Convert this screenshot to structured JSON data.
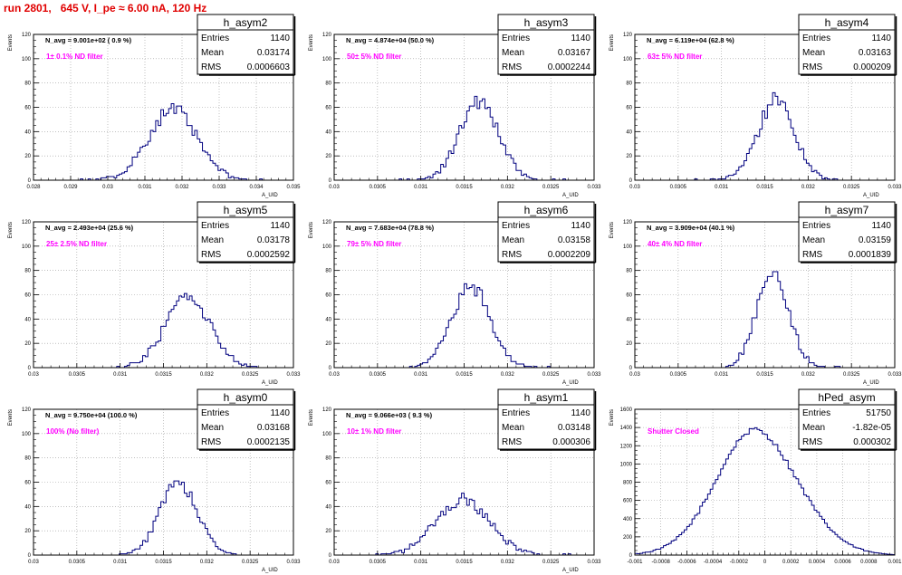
{
  "title": "run 2801,   645 V, I_pe ≈ 6.00 nA, 120 Hz",
  "stats_labels": {
    "entries": "Entries",
    "mean": "Mean",
    "rms": "RMS"
  },
  "colors": {
    "hist": "#00007f",
    "annotation": "#ff00ff",
    "title": "#e00000",
    "grid": "#9a9a9a"
  },
  "chart_data": [
    {
      "type": "bar",
      "name": "h_asym2",
      "ylabel": "Events",
      "xlabel": "A_UID",
      "header": "N_avg = 9.001e+02 ( 0.9 %)",
      "annotation": "1± 0.1% ND filter",
      "entries": "1140",
      "mean": "0.03174",
      "rms": "0.0006603",
      "xlim": [
        0.028,
        0.035
      ],
      "xticks": [
        0.028,
        0.029,
        0.03,
        0.031,
        0.032,
        0.033,
        0.034,
        0.035
      ],
      "xtick_labels": [
        "0.028",
        "0.029",
        "0.03",
        "0.031",
        "0.032",
        "0.033",
        "0.034",
        "0.035"
      ],
      "ylim": [
        0,
        120
      ],
      "yticks": [
        0,
        20,
        40,
        60,
        80,
        100,
        120
      ],
      "grid": true,
      "dist": {
        "mu": 0.03174,
        "sigma": 0.00066,
        "peak": 58,
        "seed": 11
      },
      "bins": 100
    },
    {
      "type": "bar",
      "name": "h_asym3",
      "ylabel": "Events",
      "xlabel": "A_UID",
      "header": "N_avg = 4.874e+04 (50.0 %)",
      "annotation": "50± 5% ND filter",
      "entries": "1140",
      "mean": "0.03167",
      "rms": "0.0002244",
      "xlim": [
        0.03,
        0.033
      ],
      "xticks": [
        0.03,
        0.0305,
        0.031,
        0.0315,
        0.032,
        0.0325,
        0.033
      ],
      "xtick_labels": [
        "0.03",
        "0.0305",
        "0.031",
        "0.0315",
        "0.032",
        "0.0325",
        "0.033"
      ],
      "ylim": [
        0,
        120
      ],
      "yticks": [
        0,
        20,
        40,
        60,
        80,
        100,
        120
      ],
      "grid": true,
      "dist": {
        "mu": 0.03167,
        "sigma": 0.000224,
        "peak": 65,
        "seed": 23
      },
      "bins": 100
    },
    {
      "type": "bar",
      "name": "h_asym4",
      "ylabel": "Events",
      "xlabel": "A_UID",
      "header": "N_avg = 6.119e+04 (62.8 %)",
      "annotation": "63± 5% ND filter",
      "entries": "1140",
      "mean": "0.03163",
      "rms": "0.000209",
      "xlim": [
        0.03,
        0.033
      ],
      "xticks": [
        0.03,
        0.0305,
        0.031,
        0.0315,
        0.032,
        0.0325,
        0.033
      ],
      "xtick_labels": [
        "0.03",
        "0.0305",
        "0.031",
        "0.0315",
        "0.032",
        "0.0325",
        "0.033"
      ],
      "ylim": [
        0,
        120
      ],
      "yticks": [
        0,
        20,
        40,
        60,
        80,
        100,
        120
      ],
      "grid": true,
      "dist": {
        "mu": 0.03163,
        "sigma": 0.000209,
        "peak": 66,
        "seed": 37
      },
      "bins": 100
    },
    {
      "type": "bar",
      "name": "h_asym5",
      "ylabel": "Events",
      "xlabel": "A_UID",
      "header": "N_avg = 2.493e+04 (25.6 %)",
      "annotation": "25± 2.5% ND filter",
      "entries": "1140",
      "mean": "0.03178",
      "rms": "0.0002592",
      "xlim": [
        0.03,
        0.033
      ],
      "xticks": [
        0.03,
        0.0305,
        0.031,
        0.0315,
        0.032,
        0.0325,
        0.033
      ],
      "xtick_labels": [
        "0.03",
        "0.0305",
        "0.031",
        "0.0315",
        "0.032",
        "0.0325",
        "0.033"
      ],
      "ylim": [
        0,
        120
      ],
      "yticks": [
        0,
        20,
        40,
        60,
        80,
        100,
        120
      ],
      "grid": true,
      "dist": {
        "mu": 0.03178,
        "sigma": 0.000259,
        "peak": 58,
        "seed": 41
      },
      "bins": 100
    },
    {
      "type": "bar",
      "name": "h_asym6",
      "ylabel": "Events",
      "xlabel": "A_UID",
      "header": "N_avg = 7.683e+04 (78.8 %)",
      "annotation": "79± 5% ND filter",
      "entries": "1140",
      "mean": "0.03158",
      "rms": "0.0002209",
      "xlim": [
        0.03,
        0.033
      ],
      "xticks": [
        0.03,
        0.0305,
        0.031,
        0.0315,
        0.032,
        0.0325,
        0.033
      ],
      "xtick_labels": [
        "0.03",
        "0.0305",
        "0.031",
        "0.0315",
        "0.032",
        "0.0325",
        "0.033"
      ],
      "ylim": [
        0,
        120
      ],
      "yticks": [
        0,
        20,
        40,
        60,
        80,
        100,
        120
      ],
      "grid": true,
      "dist": {
        "mu": 0.03158,
        "sigma": 0.000221,
        "peak": 66,
        "seed": 53
      },
      "bins": 100
    },
    {
      "type": "bar",
      "name": "h_asym7",
      "ylabel": "Events",
      "xlabel": "A_UID",
      "header": "N_avg = 3.909e+04 (40.1 %)",
      "annotation": "40± 4% ND filter",
      "entries": "1140",
      "mean": "0.03159",
      "rms": "0.0001839",
      "xlim": [
        0.03,
        0.033
      ],
      "xticks": [
        0.03,
        0.0305,
        0.031,
        0.0315,
        0.032,
        0.0325,
        0.033
      ],
      "xtick_labels": [
        "0.03",
        "0.0305",
        "0.031",
        "0.0315",
        "0.032",
        "0.0325",
        "0.033"
      ],
      "ylim": [
        0,
        120
      ],
      "yticks": [
        0,
        20,
        40,
        60,
        80,
        100,
        120
      ],
      "grid": true,
      "dist": {
        "mu": 0.03159,
        "sigma": 0.000184,
        "peak": 78,
        "seed": 67
      },
      "bins": 100
    },
    {
      "type": "bar",
      "name": "h_asym0",
      "ylabel": "Events",
      "xlabel": "A_UID",
      "header": "N_avg = 9.750e+04 (100.0 %)",
      "annotation": "100% (No filter)",
      "entries": "1140",
      "mean": "0.03168",
      "rms": "0.0002135",
      "xlim": [
        0.03,
        0.033
      ],
      "xticks": [
        0.03,
        0.0305,
        0.031,
        0.0315,
        0.032,
        0.0325,
        0.033
      ],
      "xtick_labels": [
        "0.03",
        "0.0305",
        "0.031",
        "0.0315",
        "0.032",
        "0.0325",
        "0.033"
      ],
      "ylim": [
        0,
        120
      ],
      "yticks": [
        0,
        20,
        40,
        60,
        80,
        100,
        120
      ],
      "grid": true,
      "dist": {
        "mu": 0.03168,
        "sigma": 0.000214,
        "peak": 60,
        "seed": 71
      },
      "bins": 100
    },
    {
      "type": "bar",
      "name": "h_asym1",
      "ylabel": "Events",
      "xlabel": "A_UID",
      "header": "N_avg = 9.066e+03 ( 9.3 %)",
      "annotation": "10± 1% ND filter",
      "entries": "1140",
      "mean": "0.03148",
      "rms": "0.000306",
      "xlim": [
        0.03,
        0.033
      ],
      "xticks": [
        0.03,
        0.0305,
        0.031,
        0.0315,
        0.032,
        0.0325,
        0.033
      ],
      "xtick_labels": [
        "0.03",
        "0.0305",
        "0.031",
        "0.0315",
        "0.032",
        "0.0325",
        "0.033"
      ],
      "ylim": [
        0,
        120
      ],
      "yticks": [
        0,
        20,
        40,
        60,
        80,
        100,
        120
      ],
      "grid": true,
      "dist": {
        "mu": 0.03148,
        "sigma": 0.000306,
        "peak": 46,
        "seed": 83
      },
      "bins": 100
    },
    {
      "type": "bar",
      "name": "hPed_asym",
      "ylabel": "Events",
      "xlabel": "",
      "header": "",
      "annotation": "Shutter Closed",
      "entries": "51750",
      "mean": "-1.82e-05",
      "rms": "0.000302",
      "xlim": [
        -0.001,
        0.001
      ],
      "xticks": [
        -0.001,
        -0.0008,
        -0.0006,
        -0.0004,
        -0.0002,
        0,
        0.0002,
        0.0004,
        0.0006,
        0.0008,
        0.001
      ],
      "xtick_labels": [
        "-0.001",
        "-0.0008",
        "-0.0006",
        "-0.0004",
        "-0.0002",
        "0",
        "0.0002",
        "0.0004",
        "0.0006",
        "0.0008",
        "0.001"
      ],
      "ylim": [
        0,
        1600
      ],
      "yticks": [
        0,
        200,
        400,
        600,
        800,
        1000,
        1200,
        1400,
        1600
      ],
      "grid": true,
      "dist": {
        "mu": -1.82e-05,
        "sigma": 0.000302,
        "peak": 1350,
        "seed": 97,
        "shape": "ped"
      },
      "bins": 100
    }
  ]
}
